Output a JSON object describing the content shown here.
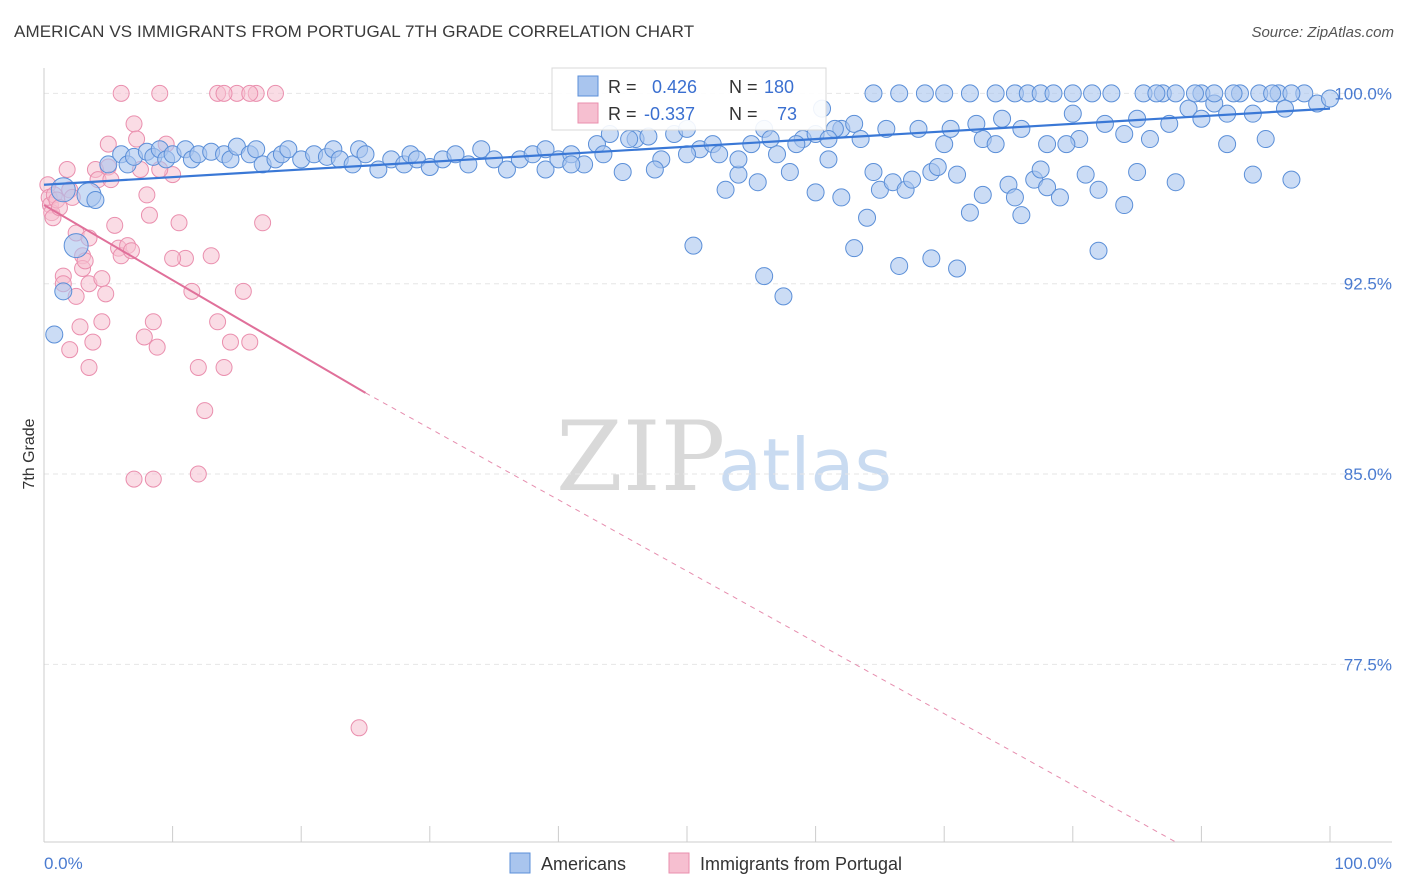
{
  "title": "AMERICAN VS IMMIGRANTS FROM PORTUGAL 7TH GRADE CORRELATION CHART",
  "source": "Source: ZipAtlas.com",
  "watermark": {
    "zip": "ZIP",
    "atlas": "atlas"
  },
  "colors": {
    "americans_fill": "#a9c5ee",
    "americans_stroke": "#5b8fd8",
    "americans_line": "#3a78d6",
    "portugal_fill": "#f6bfd0",
    "portugal_stroke": "#ea8fae",
    "portugal_line": "#e0709a",
    "tick_label": "#4a7bd0",
    "grid": "#e6e6e6"
  },
  "stats_box": {
    "rows": [
      {
        "r_label": "R =",
        "r_value": "0.426",
        "n_label": "N =",
        "n_value": "180"
      },
      {
        "r_label": "R =",
        "r_value": "-0.337",
        "n_label": "N =",
        "n_value": "73"
      }
    ]
  },
  "chart_data": {
    "type": "scatter",
    "title": "AMERICAN VS IMMIGRANTS FROM PORTUGAL 7TH GRADE CORRELATION CHART",
    "xlabel": "",
    "ylabel": "7th Grade",
    "xlim": [
      0,
      100
    ],
    "ylim": [
      70.5,
      101.0
    ],
    "x_tick_labels": [
      "0.0%",
      "100.0%"
    ],
    "y_ticks": [
      100.0,
      92.5,
      85.0,
      77.5
    ],
    "y_tick_labels": [
      "100.0%",
      "92.5%",
      "85.0%",
      "77.5%"
    ],
    "grid": true,
    "legend": {
      "placement": "bottom-center",
      "entries": [
        "Americans",
        "Immigrants from Portugal"
      ]
    },
    "series": [
      {
        "name": "Americans",
        "r": 0.426,
        "n": 180,
        "trend": {
          "x": [
            0,
            100
          ],
          "y": [
            96.4,
            99.4
          ]
        },
        "points": [
          [
            1.5,
            96.2
          ],
          [
            2.5,
            94.0
          ],
          [
            1.5,
            92.2
          ],
          [
            0.8,
            90.5
          ],
          [
            3.5,
            96.0
          ],
          [
            4.0,
            95.8
          ],
          [
            5.0,
            97.2
          ],
          [
            6.0,
            97.6
          ],
          [
            6.5,
            97.2
          ],
          [
            7.0,
            97.5
          ],
          [
            8.0,
            97.7
          ],
          [
            8.5,
            97.5
          ],
          [
            9.0,
            97.8
          ],
          [
            9.5,
            97.4
          ],
          [
            10.0,
            97.6
          ],
          [
            11.0,
            97.8
          ],
          [
            11.5,
            97.4
          ],
          [
            12.0,
            97.6
          ],
          [
            13.0,
            97.7
          ],
          [
            14.0,
            97.6
          ],
          [
            14.5,
            97.4
          ],
          [
            15.0,
            97.9
          ],
          [
            16.0,
            97.6
          ],
          [
            16.5,
            97.8
          ],
          [
            17.0,
            97.2
          ],
          [
            18.0,
            97.4
          ],
          [
            18.5,
            97.6
          ],
          [
            19.0,
            97.8
          ],
          [
            20.0,
            97.4
          ],
          [
            21.0,
            97.6
          ],
          [
            22.0,
            97.5
          ],
          [
            22.5,
            97.8
          ],
          [
            23.0,
            97.4
          ],
          [
            24.0,
            97.2
          ],
          [
            24.5,
            97.8
          ],
          [
            25.0,
            97.6
          ],
          [
            26.0,
            97.0
          ],
          [
            27.0,
            97.4
          ],
          [
            28.0,
            97.2
          ],
          [
            28.5,
            97.6
          ],
          [
            29.0,
            97.4
          ],
          [
            30.0,
            97.1
          ],
          [
            31.0,
            97.4
          ],
          [
            32.0,
            97.6
          ],
          [
            33.0,
            97.2
          ],
          [
            34.0,
            97.8
          ],
          [
            35.0,
            97.4
          ],
          [
            36.0,
            97.0
          ],
          [
            37.0,
            97.4
          ],
          [
            38.0,
            97.6
          ],
          [
            39.0,
            97.0
          ],
          [
            40.0,
            97.4
          ],
          [
            41.0,
            97.6
          ],
          [
            42.0,
            97.2
          ],
          [
            43.0,
            98.0
          ],
          [
            44.0,
            98.4
          ],
          [
            45.0,
            96.9
          ],
          [
            46.0,
            98.2
          ],
          [
            47.0,
            98.3
          ],
          [
            48.0,
            97.4
          ],
          [
            49.0,
            98.4
          ],
          [
            50.0,
            98.6
          ],
          [
            51.0,
            97.8
          ],
          [
            52.0,
            98.0
          ],
          [
            53.0,
            96.2
          ],
          [
            54.0,
            96.8
          ],
          [
            55.0,
            98.0
          ],
          [
            56.0,
            98.6
          ],
          [
            57.0,
            97.6
          ],
          [
            58.0,
            96.9
          ],
          [
            59.0,
            98.2
          ],
          [
            60.0,
            98.4
          ],
          [
            61.0,
            97.4
          ],
          [
            62.0,
            98.6
          ],
          [
            63.0,
            98.8
          ],
          [
            64.0,
            95.1
          ],
          [
            65.0,
            96.2
          ],
          [
            66.0,
            96.5
          ],
          [
            67.0,
            96.2
          ],
          [
            68.0,
            98.6
          ],
          [
            69.0,
            96.9
          ],
          [
            70.0,
            98.0
          ],
          [
            71.0,
            96.8
          ],
          [
            72.0,
            95.3
          ],
          [
            73.0,
            98.2
          ],
          [
            74.0,
            98.0
          ],
          [
            75.0,
            96.4
          ],
          [
            76.0,
            95.2
          ],
          [
            77.0,
            96.6
          ],
          [
            78.0,
            96.3
          ],
          [
            79.0,
            95.9
          ],
          [
            80.0,
            100.0
          ],
          [
            81.0,
            96.8
          ],
          [
            82.0,
            96.2
          ],
          [
            83.0,
            100.0
          ],
          [
            84.0,
            98.4
          ],
          [
            85.0,
            96.9
          ],
          [
            86.0,
            98.2
          ],
          [
            87.0,
            100.0
          ],
          [
            88.0,
            96.5
          ],
          [
            89.0,
            99.4
          ],
          [
            90.0,
            100.0
          ],
          [
            91.0,
            99.6
          ],
          [
            92.0,
            98.0
          ],
          [
            93.0,
            100.0
          ],
          [
            94.0,
            96.8
          ],
          [
            95.0,
            98.2
          ],
          [
            96.0,
            100.0
          ],
          [
            97.0,
            96.6
          ],
          [
            98.0,
            100.0
          ],
          [
            99.0,
            99.6
          ],
          [
            100.0,
            99.8
          ],
          [
            55.5,
            96.5
          ],
          [
            50.5,
            94.0
          ],
          [
            56.0,
            92.8
          ],
          [
            57.5,
            92.0
          ],
          [
            63.0,
            93.9
          ],
          [
            66.5,
            93.2
          ],
          [
            69.0,
            93.5
          ],
          [
            71.0,
            93.1
          ],
          [
            82.0,
            93.8
          ],
          [
            84.0,
            95.6
          ],
          [
            60.0,
            96.1
          ],
          [
            62.0,
            95.9
          ],
          [
            64.5,
            96.9
          ],
          [
            67.5,
            96.6
          ],
          [
            69.5,
            97.1
          ],
          [
            73.0,
            96.0
          ],
          [
            75.5,
            95.9
          ],
          [
            77.5,
            97.0
          ],
          [
            80.5,
            98.2
          ],
          [
            79.5,
            98.0
          ],
          [
            60.5,
            99.4
          ],
          [
            61.5,
            98.6
          ],
          [
            64.5,
            100.0
          ],
          [
            66.5,
            100.0
          ],
          [
            68.5,
            100.0
          ],
          [
            70.0,
            100.0
          ],
          [
            72.0,
            100.0
          ],
          [
            74.0,
            100.0
          ],
          [
            75.5,
            100.0
          ],
          [
            76.5,
            100.0
          ],
          [
            77.5,
            100.0
          ],
          [
            78.5,
            100.0
          ],
          [
            81.5,
            100.0
          ],
          [
            85.5,
            100.0
          ],
          [
            86.5,
            100.0
          ],
          [
            88.0,
            100.0
          ],
          [
            89.5,
            100.0
          ],
          [
            91.0,
            100.0
          ],
          [
            92.5,
            100.0
          ],
          [
            94.5,
            100.0
          ],
          [
            95.5,
            100.0
          ],
          [
            97.0,
            100.0
          ],
          [
            39.0,
            97.8
          ],
          [
            41.0,
            97.2
          ],
          [
            43.5,
            97.6
          ],
          [
            45.5,
            98.2
          ],
          [
            47.5,
            97.0
          ],
          [
            50.0,
            97.6
          ],
          [
            52.5,
            97.6
          ],
          [
            54.0,
            97.4
          ],
          [
            56.5,
            98.2
          ],
          [
            58.5,
            98.0
          ],
          [
            61.0,
            98.2
          ],
          [
            63.5,
            98.2
          ],
          [
            65.5,
            98.6
          ],
          [
            70.5,
            98.6
          ],
          [
            72.5,
            98.8
          ],
          [
            74.5,
            99.0
          ],
          [
            76.0,
            98.6
          ],
          [
            78.0,
            98.0
          ],
          [
            80.0,
            99.2
          ],
          [
            82.5,
            98.8
          ],
          [
            85.0,
            99.0
          ],
          [
            87.5,
            98.8
          ],
          [
            90.0,
            99.0
          ],
          [
            92.0,
            99.2
          ],
          [
            94.0,
            99.2
          ],
          [
            96.5,
            99.4
          ]
        ]
      },
      {
        "name": "Immigrants from Portugal",
        "r": -0.337,
        "n": 73,
        "trend": {
          "x": [
            0,
            25
          ],
          "y": [
            95.6,
            88.2
          ],
          "dashed_extension": {
            "x": [
              25,
              88
            ],
            "y": [
              88.2,
              70.5
            ]
          }
        },
        "points": [
          [
            0.3,
            96.4
          ],
          [
            0.4,
            95.9
          ],
          [
            0.5,
            95.6
          ],
          [
            0.6,
            95.3
          ],
          [
            0.7,
            95.1
          ],
          [
            0.8,
            96.0
          ],
          [
            1.0,
            95.8
          ],
          [
            1.2,
            95.5
          ],
          [
            1.5,
            92.8
          ],
          [
            1.5,
            92.5
          ],
          [
            1.8,
            97.0
          ],
          [
            2.0,
            96.2
          ],
          [
            2.2,
            95.9
          ],
          [
            2.5,
            94.5
          ],
          [
            2.5,
            92.0
          ],
          [
            2.8,
            90.8
          ],
          [
            3.0,
            93.6
          ],
          [
            3.0,
            93.1
          ],
          [
            3.2,
            93.4
          ],
          [
            3.5,
            94.3
          ],
          [
            3.5,
            92.5
          ],
          [
            3.8,
            90.2
          ],
          [
            4.0,
            97.0
          ],
          [
            4.2,
            96.6
          ],
          [
            4.5,
            92.7
          ],
          [
            4.8,
            92.1
          ],
          [
            5.0,
            98.0
          ],
          [
            5.0,
            97.1
          ],
          [
            5.2,
            96.6
          ],
          [
            5.5,
            94.8
          ],
          [
            5.8,
            93.9
          ],
          [
            6.0,
            93.6
          ],
          [
            6.5,
            94.0
          ],
          [
            6.8,
            93.8
          ],
          [
            7.0,
            98.8
          ],
          [
            7.2,
            98.2
          ],
          [
            7.5,
            97.0
          ],
          [
            7.8,
            90.4
          ],
          [
            8.0,
            96.0
          ],
          [
            8.2,
            95.2
          ],
          [
            8.5,
            91.0
          ],
          [
            8.8,
            90.0
          ],
          [
            9.0,
            100.0
          ],
          [
            9.5,
            98.0
          ],
          [
            10.0,
            96.8
          ],
          [
            10.5,
            94.9
          ],
          [
            11.0,
            93.5
          ],
          [
            11.5,
            92.2
          ],
          [
            12.0,
            89.2
          ],
          [
            12.5,
            87.5
          ],
          [
            13.0,
            93.6
          ],
          [
            13.5,
            91.0
          ],
          [
            14.0,
            89.2
          ],
          [
            14.5,
            90.2
          ],
          [
            15.0,
            100.0
          ],
          [
            15.5,
            92.2
          ],
          [
            16.0,
            90.2
          ],
          [
            16.5,
            100.0
          ],
          [
            17.0,
            94.9
          ],
          [
            18.0,
            100.0
          ],
          [
            2.0,
            89.9
          ],
          [
            3.5,
            89.2
          ],
          [
            4.5,
            91.0
          ],
          [
            7.0,
            84.8
          ],
          [
            8.5,
            84.8
          ],
          [
            12.0,
            85.0
          ],
          [
            13.5,
            100.0
          ],
          [
            14.0,
            100.0
          ],
          [
            16.0,
            100.0
          ],
          [
            24.5,
            75.0
          ],
          [
            6.0,
            100.0
          ],
          [
            9.0,
            97.0
          ],
          [
            10.0,
            93.5
          ]
        ]
      }
    ]
  }
}
